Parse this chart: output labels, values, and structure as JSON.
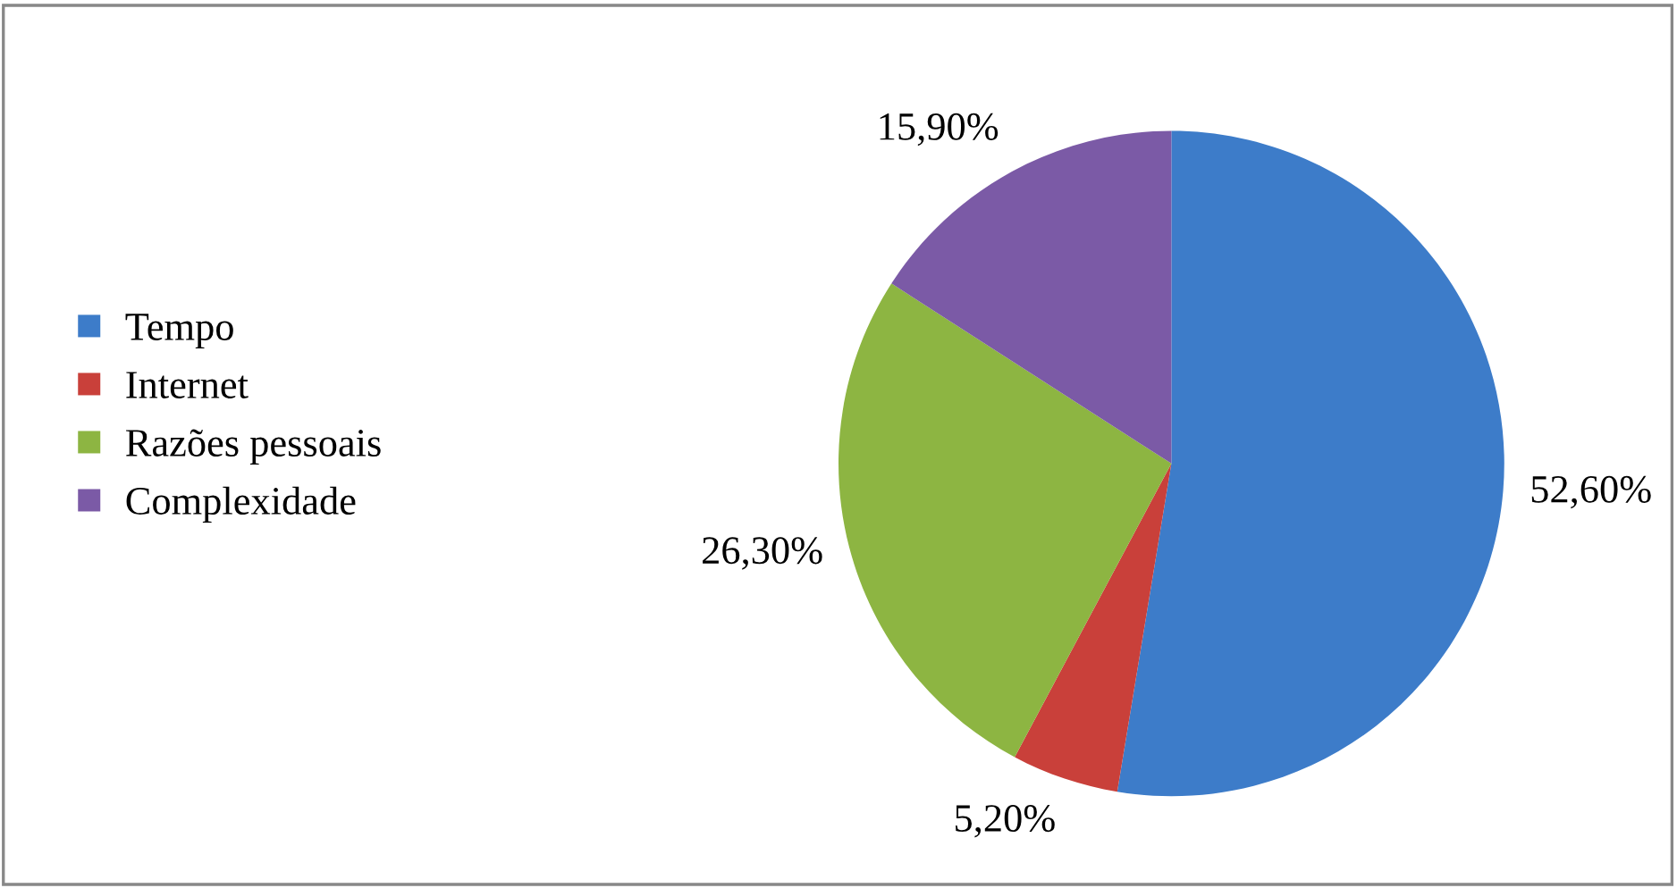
{
  "chart_data": {
    "type": "pie",
    "categories": [
      "Tempo",
      "Internet",
      "Razões pessoais",
      "Complexidade"
    ],
    "values": [
      52.6,
      5.2,
      26.3,
      15.9
    ],
    "value_labels": [
      "52,60%",
      "5,20%",
      "26,30%",
      "15,90%"
    ],
    "colors": [
      "#3d7cc9",
      "#c9403a",
      "#8db542",
      "#7b5aa6"
    ],
    "legend": "left"
  }
}
